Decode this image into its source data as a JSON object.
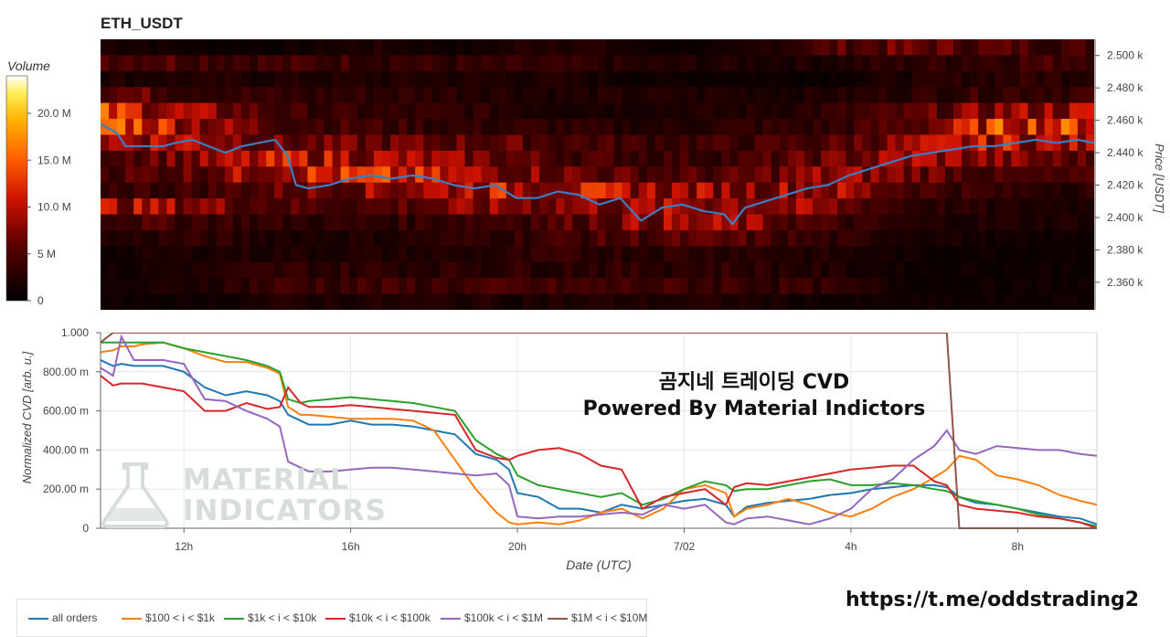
{
  "heatmap": {
    "title": "ETH_USDT",
    "colorbar_label": "Volume",
    "colorbar_ticks": [
      "0",
      "5 M",
      "10.0 M",
      "15.0 M",
      "20.0 M"
    ],
    "colorbar_tick_values": [
      0,
      5,
      10,
      15,
      20
    ],
    "colorbar_max": 24,
    "price_axis_label": "Price [USDT]",
    "price_ticks": [
      "2.360 k",
      "2.380 k",
      "2.400 k",
      "2.420 k",
      "2.440 k",
      "2.460 k",
      "2.480 k",
      "2.500 k"
    ],
    "price_tick_values": [
      2360,
      2380,
      2400,
      2420,
      2440,
      2460,
      2480,
      2500
    ],
    "price_range": [
      2343,
      2510
    ]
  },
  "cvd": {
    "y_axis_label": "Normalized CVD [arb. u.]",
    "y_ticks": [
      "0",
      "200.00 m",
      "400.00 m",
      "600.00 m",
      "800.00 m",
      "1.000"
    ],
    "y_tick_values": [
      0,
      0.2,
      0.4,
      0.6,
      0.8,
      1.0
    ],
    "x_axis_label": "Date (UTC)",
    "x_ticks": [
      "12h",
      "16h",
      "20h",
      "7/02",
      "4h",
      "8h"
    ],
    "x_tick_values": [
      12,
      16,
      20,
      24,
      28,
      32
    ],
    "x_range": [
      10,
      33.9
    ]
  },
  "overlay": {
    "title_line1": "곰지네 트레이딩 CVD",
    "title_line2": "Powered By Material Indictors"
  },
  "watermark": {
    "line1": "MATERIAL",
    "line2": "INDICATORS"
  },
  "url": "https://t.me/oddstrading2",
  "colors": {
    "all_orders": "#1f77b4",
    "s100_1k": "#ff7f0e",
    "s1k_10k": "#2ca02c",
    "s10k_100k": "#d62728",
    "s100k_1m": "#9467bd",
    "s1m_10m": "#8c564b"
  },
  "chart_data": [
    {
      "type": "heatmap",
      "title": "ETH_USDT",
      "x_range": [
        10,
        33.9
      ],
      "y_range": [
        2343,
        2510
      ],
      "bands": [
        {
          "price": 2504,
          "row_volume": [
            2,
            1,
            1,
            2,
            1,
            3,
            1,
            1,
            5,
            6,
            5,
            4
          ]
        },
        {
          "price": 2494,
          "row_volume": [
            6,
            5,
            4,
            4,
            3,
            3,
            2,
            2,
            2,
            3,
            4,
            5
          ]
        },
        {
          "price": 2484,
          "row_volume": [
            2,
            2,
            2,
            2,
            2,
            2,
            1,
            1,
            1,
            2,
            3,
            3
          ]
        },
        {
          "price": 2474,
          "row_volume": [
            7,
            4,
            3,
            3,
            3,
            2,
            2,
            2,
            2,
            3,
            4,
            4
          ]
        },
        {
          "price": 2464,
          "row_volume": [
            12,
            8,
            4,
            3,
            3,
            2,
            2,
            2,
            3,
            5,
            8,
            9
          ]
        },
        {
          "price": 2454,
          "row_volume": [
            16,
            9,
            5,
            4,
            3,
            3,
            2,
            3,
            3,
            6,
            13,
            12
          ]
        },
        {
          "price": 2444,
          "row_volume": [
            9,
            10,
            6,
            6,
            6,
            5,
            4,
            4,
            5,
            8,
            10,
            8
          ]
        },
        {
          "price": 2434,
          "row_volume": [
            6,
            7,
            10,
            9,
            7,
            5,
            4,
            4,
            6,
            9,
            7,
            5
          ]
        },
        {
          "price": 2424,
          "row_volume": [
            5,
            6,
            11,
            11,
            9,
            7,
            5,
            5,
            8,
            7,
            4,
            4
          ]
        },
        {
          "price": 2414,
          "row_volume": [
            4,
            4,
            6,
            8,
            10,
            10,
            9,
            8,
            9,
            5,
            3,
            3
          ]
        },
        {
          "price": 2404,
          "row_volume": [
            9,
            8,
            5,
            5,
            7,
            8,
            8,
            9,
            7,
            3,
            2,
            2
          ]
        },
        {
          "price": 2394,
          "row_volume": [
            5,
            4,
            3,
            3,
            4,
            5,
            8,
            8,
            4,
            2,
            2,
            2
          ]
        },
        {
          "price": 2384,
          "row_volume": [
            2,
            3,
            2,
            2,
            3,
            4,
            5,
            5,
            3,
            2,
            1,
            1
          ]
        },
        {
          "price": 2374,
          "row_volume": [
            1,
            2,
            2,
            2,
            2,
            3,
            3,
            3,
            2,
            1,
            1,
            1
          ]
        },
        {
          "price": 2364,
          "row_volume": [
            1,
            2,
            3,
            3,
            3,
            3,
            3,
            3,
            2,
            1,
            1,
            1
          ]
        },
        {
          "price": 2354,
          "row_volume": [
            1,
            2,
            4,
            4,
            4,
            4,
            4,
            4,
            3,
            1,
            1,
            1
          ]
        },
        {
          "price": 2346,
          "row_volume": [
            1,
            1,
            2,
            2,
            2,
            2,
            2,
            2,
            1,
            1,
            1,
            1
          ]
        }
      ],
      "price_line": {
        "x": [
          10,
          10.4,
          10.6,
          11.5,
          11.8,
          12.2,
          12.6,
          13,
          13.4,
          13.8,
          14.2,
          14.5,
          14.7,
          15,
          15.5,
          16,
          16.5,
          17,
          17.5,
          18,
          18.5,
          19,
          19.5,
          20,
          20.5,
          21,
          21.5,
          22,
          22.5,
          23,
          23.5,
          24,
          24.5,
          25,
          25.2,
          25.5,
          26,
          26.5,
          27,
          27.5,
          28,
          28.5,
          29,
          29.5,
          30,
          30.5,
          31,
          31.5,
          32,
          32.5,
          33,
          33.5,
          33.9
        ],
        "y": [
          2458,
          2452,
          2444,
          2444,
          2446,
          2448,
          2444,
          2440,
          2444,
          2446,
          2448,
          2438,
          2420,
          2418,
          2420,
          2424,
          2426,
          2424,
          2426,
          2424,
          2420,
          2418,
          2420,
          2412,
          2412,
          2416,
          2414,
          2408,
          2412,
          2398,
          2406,
          2408,
          2404,
          2402,
          2396,
          2406,
          2410,
          2414,
          2418,
          2420,
          2426,
          2430,
          2434,
          2438,
          2440,
          2442,
          2444,
          2444,
          2446,
          2448,
          2446,
          2448,
          2446
        ]
      }
    },
    {
      "type": "line",
      "xlabel": "Date (UTC)",
      "ylabel": "Normalized CVD [arb. u.]",
      "ylim": [
        0,
        1
      ],
      "x": [
        10,
        10.3,
        10.5,
        10.8,
        11,
        11.5,
        12,
        12.5,
        13,
        13.5,
        14,
        14.3,
        14.5,
        14.8,
        15,
        15.5,
        16,
        16.5,
        17,
        17.5,
        18,
        18.5,
        19,
        19.5,
        19.8,
        20,
        20.5,
        21,
        21.5,
        22,
        22.5,
        23,
        23.5,
        24,
        24.5,
        25,
        25.2,
        25.5,
        26,
        26.5,
        27,
        27.5,
        28,
        28.5,
        29,
        29.5,
        30,
        30.3,
        30.6,
        31,
        31.5,
        32,
        32.5,
        33,
        33.5,
        33.9
      ],
      "series": [
        {
          "name": "all orders",
          "color_key": "all_orders",
          "values": [
            0.86,
            0.83,
            0.84,
            0.83,
            0.83,
            0.83,
            0.8,
            0.72,
            0.68,
            0.7,
            0.68,
            0.65,
            0.58,
            0.55,
            0.53,
            0.53,
            0.55,
            0.53,
            0.53,
            0.52,
            0.5,
            0.48,
            0.38,
            0.35,
            0.3,
            0.18,
            0.16,
            0.1,
            0.1,
            0.08,
            0.12,
            0.1,
            0.12,
            0.14,
            0.15,
            0.12,
            0.06,
            0.11,
            0.13,
            0.14,
            0.15,
            0.17,
            0.18,
            0.2,
            0.21,
            0.22,
            0.22,
            0.21,
            0.16,
            0.13,
            0.12,
            0.1,
            0.08,
            0.06,
            0.05,
            0.02
          ]
        },
        {
          "name": "$100 < i < $1k",
          "color_key": "s100_1k",
          "values": [
            0.9,
            0.91,
            0.93,
            0.93,
            0.94,
            0.95,
            0.92,
            0.88,
            0.85,
            0.85,
            0.82,
            0.79,
            0.62,
            0.58,
            0.58,
            0.57,
            0.56,
            0.56,
            0.56,
            0.55,
            0.5,
            0.35,
            0.2,
            0.08,
            0.03,
            0.02,
            0.03,
            0.02,
            0.04,
            0.08,
            0.1,
            0.05,
            0.1,
            0.2,
            0.22,
            0.18,
            0.06,
            0.1,
            0.12,
            0.15,
            0.12,
            0.08,
            0.06,
            0.1,
            0.16,
            0.2,
            0.26,
            0.3,
            0.37,
            0.35,
            0.27,
            0.25,
            0.22,
            0.17,
            0.14,
            0.12
          ]
        },
        {
          "name": "$1k < i < $10k",
          "color_key": "s1k_10k",
          "values": [
            0.95,
            0.95,
            0.95,
            0.95,
            0.95,
            0.95,
            0.92,
            0.9,
            0.88,
            0.86,
            0.83,
            0.8,
            0.66,
            0.64,
            0.65,
            0.66,
            0.67,
            0.66,
            0.65,
            0.64,
            0.62,
            0.6,
            0.45,
            0.38,
            0.35,
            0.27,
            0.22,
            0.2,
            0.18,
            0.16,
            0.18,
            0.12,
            0.15,
            0.2,
            0.24,
            0.22,
            0.19,
            0.2,
            0.2,
            0.22,
            0.24,
            0.25,
            0.22,
            0.22,
            0.23,
            0.22,
            0.2,
            0.19,
            0.16,
            0.14,
            0.12,
            0.1,
            0.07,
            0.05,
            0.03,
            0.01
          ]
        },
        {
          "name": "$10k < i < $100k",
          "color_key": "s10k_100k",
          "values": [
            0.78,
            0.73,
            0.74,
            0.74,
            0.74,
            0.72,
            0.7,
            0.6,
            0.6,
            0.64,
            0.61,
            0.62,
            0.72,
            0.64,
            0.62,
            0.62,
            0.63,
            0.62,
            0.61,
            0.6,
            0.59,
            0.58,
            0.4,
            0.36,
            0.35,
            0.37,
            0.4,
            0.41,
            0.38,
            0.32,
            0.3,
            0.1,
            0.16,
            0.18,
            0.2,
            0.12,
            0.21,
            0.23,
            0.22,
            0.24,
            0.26,
            0.28,
            0.3,
            0.31,
            0.32,
            0.32,
            0.24,
            0.22,
            0.12,
            0.1,
            0.09,
            0.08,
            0.06,
            0.05,
            0.03,
            0.0
          ]
        },
        {
          "name": "$100k < i < $1M",
          "color_key": "s100k_1m",
          "values": [
            0.82,
            0.78,
            0.98,
            0.86,
            0.86,
            0.86,
            0.84,
            0.66,
            0.65,
            0.6,
            0.56,
            0.52,
            0.34,
            0.31,
            0.29,
            0.29,
            0.3,
            0.31,
            0.31,
            0.3,
            0.29,
            0.28,
            0.27,
            0.28,
            0.22,
            0.06,
            0.05,
            0.06,
            0.06,
            0.07,
            0.08,
            0.07,
            0.12,
            0.1,
            0.12,
            0.03,
            0.02,
            0.05,
            0.06,
            0.04,
            0.02,
            0.05,
            0.1,
            0.2,
            0.25,
            0.35,
            0.42,
            0.5,
            0.4,
            0.38,
            0.42,
            0.41,
            0.4,
            0.4,
            0.38,
            0.37
          ]
        },
        {
          "name": "$1M < i < $10M",
          "color_key": "s1m_10m",
          "values": [
            0.95,
            1.0,
            1.0,
            1.0,
            1.0,
            1.0,
            1.0,
            1.0,
            1.0,
            1.0,
            1.0,
            1.0,
            1.0,
            1.0,
            1.0,
            1.0,
            1.0,
            1.0,
            1.0,
            1.0,
            1.0,
            1.0,
            1.0,
            1.0,
            1.0,
            1.0,
            1.0,
            1.0,
            1.0,
            1.0,
            1.0,
            1.0,
            1.0,
            1.0,
            1.0,
            1.0,
            1.0,
            1.0,
            1.0,
            1.0,
            1.0,
            1.0,
            1.0,
            1.0,
            1.0,
            1.0,
            1.0,
            1.0,
            0.0,
            0.0,
            0.0,
            0.0,
            0.0,
            0.0,
            0.0,
            0.0
          ]
        }
      ]
    }
  ],
  "legend": [
    {
      "label": "all orders",
      "color_key": "all_orders"
    },
    {
      "label": "$100 < i < $1k",
      "color_key": "s100_1k"
    },
    {
      "label": "$1k < i < $10k",
      "color_key": "s1k_10k"
    },
    {
      "label": "$10k < i < $100k",
      "color_key": "s10k_100k"
    },
    {
      "label": "$100k < i < $1M",
      "color_key": "s100k_1m"
    },
    {
      "label": "$1M < i < $10M",
      "color_key": "s1m_10m"
    }
  ]
}
